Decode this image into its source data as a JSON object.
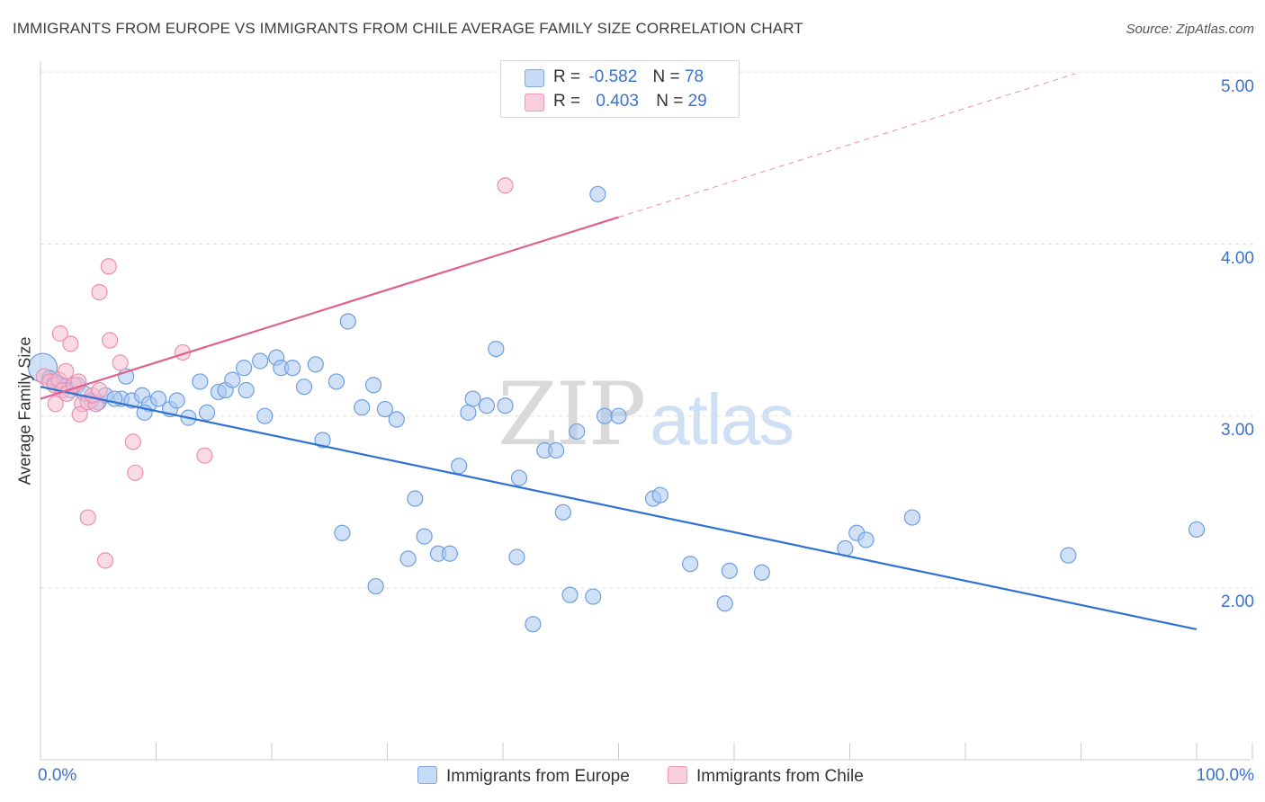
{
  "title": "IMMIGRANTS FROM EUROPE VS IMMIGRANTS FROM CHILE AVERAGE FAMILY SIZE CORRELATION CHART",
  "source": "Source: ZipAtlas.com",
  "watermark": {
    "zip": "ZIP",
    "atlas": "atlas"
  },
  "legend": {
    "europe": {
      "r_label": "R =",
      "r_value": "-0.582",
      "n_label": "N =",
      "n_value": "78"
    },
    "chile": {
      "r_label": "R =",
      "r_value": "0.403",
      "n_label": "N =",
      "n_value": "29"
    }
  },
  "colors": {
    "europe_fill": "#a9c8f0",
    "europe_stroke": "#6f9fe0",
    "europe_line": "#2f72d4",
    "chile_fill": "#f6bcd0",
    "chile_stroke": "#eb8fb0",
    "chile_line": "#e0608e",
    "grid": "#e0e0e0",
    "axis_text": "#3a72cc"
  },
  "chart_data": {
    "type": "scatter",
    "title": "IMMIGRANTS FROM EUROPE VS IMMIGRANTS FROM CHILE AVERAGE FAMILY SIZE CORRELATION CHART",
    "xlabel": "",
    "ylabel": "Average Family Size",
    "xlim": [
      0,
      100
    ],
    "ylim": [
      1.0,
      5.1
    ],
    "x_tick_labels": [
      "0.0%",
      "100.0%"
    ],
    "y_ticks": [
      2.0,
      3.0,
      4.0,
      5.0
    ],
    "y_tick_labels": [
      "2.00",
      "3.00",
      "4.00",
      "5.00"
    ],
    "grid": true,
    "series": [
      {
        "name": "Immigrants from Europe",
        "r": -0.582,
        "n": 78,
        "trend": {
          "x": [
            0,
            100
          ],
          "y": [
            3.17,
            1.76
          ],
          "solid_to": 100
        },
        "points": [
          {
            "x": 0.2,
            "y": 3.28,
            "big": true
          },
          {
            "x": 0.8,
            "y": 3.22
          },
          {
            "x": 1.2,
            "y": 3.2
          },
          {
            "x": 1.6,
            "y": 3.19
          },
          {
            "x": 2.1,
            "y": 3.17
          },
          {
            "x": 2.6,
            "y": 3.15
          },
          {
            "x": 3.2,
            "y": 3.18
          },
          {
            "x": 3.8,
            "y": 3.13
          },
          {
            "x": 4.4,
            "y": 3.09
          },
          {
            "x": 5.0,
            "y": 3.08
          },
          {
            "x": 5.6,
            "y": 3.12
          },
          {
            "x": 7.4,
            "y": 3.23
          },
          {
            "x": 7.0,
            "y": 3.1
          },
          {
            "x": 6.4,
            "y": 3.1
          },
          {
            "x": 7.9,
            "y": 3.09
          },
          {
            "x": 8.8,
            "y": 3.12
          },
          {
            "x": 9.4,
            "y": 3.07
          },
          {
            "x": 9.0,
            "y": 3.02
          },
          {
            "x": 10.2,
            "y": 3.1
          },
          {
            "x": 11.2,
            "y": 3.04
          },
          {
            "x": 11.8,
            "y": 3.09
          },
          {
            "x": 12.8,
            "y": 2.99
          },
          {
            "x": 13.8,
            "y": 3.2
          },
          {
            "x": 14.4,
            "y": 3.02
          },
          {
            "x": 15.4,
            "y": 3.14
          },
          {
            "x": 16.0,
            "y": 3.15
          },
          {
            "x": 16.6,
            "y": 3.21
          },
          {
            "x": 17.8,
            "y": 3.15
          },
          {
            "x": 17.6,
            "y": 3.28
          },
          {
            "x": 19.4,
            "y": 3.0
          },
          {
            "x": 19.0,
            "y": 3.32
          },
          {
            "x": 20.4,
            "y": 3.34
          },
          {
            "x": 20.8,
            "y": 3.28
          },
          {
            "x": 21.8,
            "y": 3.28
          },
          {
            "x": 22.8,
            "y": 3.17
          },
          {
            "x": 23.8,
            "y": 3.3
          },
          {
            "x": 24.4,
            "y": 2.86
          },
          {
            "x": 25.6,
            "y": 3.2
          },
          {
            "x": 26.6,
            "y": 3.55
          },
          {
            "x": 27.8,
            "y": 3.05
          },
          {
            "x": 28.8,
            "y": 3.18
          },
          {
            "x": 29.8,
            "y": 3.04
          },
          {
            "x": 30.8,
            "y": 2.98
          },
          {
            "x": 26.1,
            "y": 2.32
          },
          {
            "x": 32.4,
            "y": 2.52
          },
          {
            "x": 33.2,
            "y": 2.3
          },
          {
            "x": 34.4,
            "y": 2.2
          },
          {
            "x": 35.4,
            "y": 2.2
          },
          {
            "x": 31.8,
            "y": 2.17
          },
          {
            "x": 29.0,
            "y": 2.01
          },
          {
            "x": 36.2,
            "y": 2.71
          },
          {
            "x": 37.0,
            "y": 3.02
          },
          {
            "x": 37.4,
            "y": 3.1
          },
          {
            "x": 38.6,
            "y": 3.06
          },
          {
            "x": 39.4,
            "y": 3.39
          },
          {
            "x": 40.2,
            "y": 3.06
          },
          {
            "x": 41.4,
            "y": 2.64
          },
          {
            "x": 41.2,
            "y": 2.18
          },
          {
            "x": 43.6,
            "y": 2.8
          },
          {
            "x": 44.6,
            "y": 2.8
          },
          {
            "x": 45.2,
            "y": 2.44
          },
          {
            "x": 46.4,
            "y": 2.91
          },
          {
            "x": 45.8,
            "y": 1.96
          },
          {
            "x": 47.8,
            "y": 1.95
          },
          {
            "x": 42.6,
            "y": 1.79
          },
          {
            "x": 48.2,
            "y": 4.29
          },
          {
            "x": 48.8,
            "y": 3.0
          },
          {
            "x": 50.0,
            "y": 3.0
          },
          {
            "x": 53.0,
            "y": 2.52
          },
          {
            "x": 53.6,
            "y": 2.54
          },
          {
            "x": 56.2,
            "y": 2.14
          },
          {
            "x": 59.6,
            "y": 2.1
          },
          {
            "x": 59.2,
            "y": 1.91
          },
          {
            "x": 62.4,
            "y": 2.09
          },
          {
            "x": 69.6,
            "y": 2.23
          },
          {
            "x": 70.6,
            "y": 2.32
          },
          {
            "x": 71.4,
            "y": 2.28
          },
          {
            "x": 75.4,
            "y": 2.41
          },
          {
            "x": 88.9,
            "y": 2.19
          },
          {
            "x": 100.0,
            "y": 2.34
          }
        ]
      },
      {
        "name": "Immigrants from Chile",
        "r": 0.403,
        "n": 29,
        "trend": {
          "x": [
            0,
            89.5
          ],
          "y": [
            3.1,
            4.99
          ],
          "solid_to": 50
        },
        "points": [
          {
            "x": 0.3,
            "y": 3.23
          },
          {
            "x": 0.8,
            "y": 3.2
          },
          {
            "x": 1.2,
            "y": 3.18
          },
          {
            "x": 1.6,
            "y": 3.21
          },
          {
            "x": 1.3,
            "y": 3.07
          },
          {
            "x": 1.9,
            "y": 3.15
          },
          {
            "x": 2.2,
            "y": 3.26
          },
          {
            "x": 2.3,
            "y": 3.13
          },
          {
            "x": 1.7,
            "y": 3.48
          },
          {
            "x": 2.6,
            "y": 3.42
          },
          {
            "x": 2.9,
            "y": 3.18
          },
          {
            "x": 3.3,
            "y": 3.2
          },
          {
            "x": 3.6,
            "y": 3.07
          },
          {
            "x": 3.4,
            "y": 3.01
          },
          {
            "x": 4.1,
            "y": 3.08
          },
          {
            "x": 4.8,
            "y": 3.07
          },
          {
            "x": 4.5,
            "y": 3.12
          },
          {
            "x": 5.1,
            "y": 3.15
          },
          {
            "x": 5.1,
            "y": 3.72
          },
          {
            "x": 5.9,
            "y": 3.87
          },
          {
            "x": 6.0,
            "y": 3.44
          },
          {
            "x": 6.9,
            "y": 3.31
          },
          {
            "x": 8.0,
            "y": 2.85
          },
          {
            "x": 8.2,
            "y": 2.67
          },
          {
            "x": 4.1,
            "y": 2.41
          },
          {
            "x": 5.6,
            "y": 2.16
          },
          {
            "x": 12.3,
            "y": 3.37
          },
          {
            "x": 14.2,
            "y": 2.77
          },
          {
            "x": 40.2,
            "y": 4.34
          }
        ]
      }
    ]
  },
  "bottom_legend": {
    "europe": "Immigrants from Europe",
    "chile": "Immigrants from Chile"
  }
}
